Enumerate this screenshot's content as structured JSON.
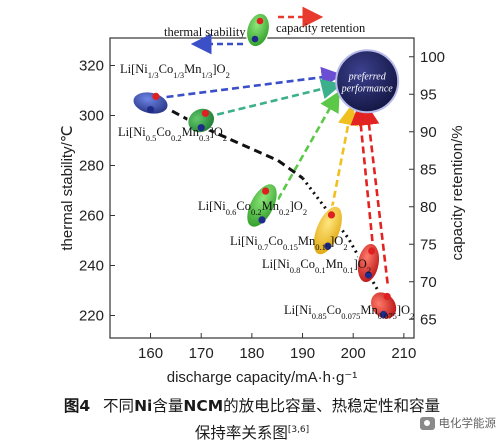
{
  "chart_data": {
    "type": "scatter",
    "xlabel": "discharge capacity/mA·h·g⁻¹",
    "ylabel_left": "thermal stability/℃",
    "ylabel_right": "capacity retention/%",
    "x_ticks": [
      "160",
      "170",
      "180",
      "190",
      "200",
      "210"
    ],
    "y_left_ticks": [
      "220",
      "240",
      "260",
      "280",
      "300",
      "320"
    ],
    "y_right_ticks": [
      "65",
      "70",
      "75",
      "80",
      "85",
      "90",
      "95",
      "100"
    ],
    "xlim": [
      152,
      212
    ],
    "ylim_left": [
      211,
      331
    ],
    "ylim_right": [
      62.5,
      102.5
    ],
    "points": [
      {
        "label": "Li[Ni1/3Co1/3Mn1/3]O2",
        "x": 160,
        "thermal_stability": 305,
        "capacity_retention": 95,
        "color": "#2c3e94"
      },
      {
        "label": "Li[Ni0.5Co0.2Mn0.3]O2",
        "x": 170,
        "thermal_stability": 298,
        "capacity_retention": 93,
        "color": "#2e9c45"
      },
      {
        "label": "Li[Ni0.6Co0.2Mn0.2]O2",
        "x": 182,
        "thermal_stability": 264,
        "capacity_retention": 87,
        "color": "#4cc23a"
      },
      {
        "label": "Li[Ni0.7Co0.15Mn0.15]O2",
        "x": 195,
        "thermal_stability": 254,
        "capacity_retention": 80,
        "color": "#f1c01a"
      },
      {
        "label": "Li[Ni0.8Co0.1Mn0.1]O2",
        "x": 203,
        "thermal_stability": 241,
        "capacity_retention": 75,
        "color": "#e32222"
      },
      {
        "label": "Li[Ni0.85Co0.075Mn0.075]O2",
        "x": 206,
        "thermal_stability": 224,
        "capacity_retention": 68,
        "color": "#d42020"
      }
    ],
    "preferred_point": {
      "label_line1": "preferred",
      "label_line2": "performance",
      "x": 200,
      "capacity_retention": 97
    },
    "legend": {
      "thermal": "thermal stability",
      "retention": "capacity retention"
    }
  },
  "point_labels": [
    {
      "main": "Li[Ni",
      "sub1": "1/3",
      "mid1": "Co",
      "sub2": "1/3",
      "mid2": "Mn",
      "sub3": "1/3",
      "end": "]O",
      "sub4": "2"
    },
    {
      "main": "Li[Ni",
      "sub1": "0.5",
      "mid1": "Co",
      "sub2": "0.2",
      "mid2": "Mn",
      "sub3": "0.3",
      "end": "]O",
      "sub4": "2"
    },
    {
      "main": "Li[Ni",
      "sub1": "0.6",
      "mid1": "Co",
      "sub2": "0.2",
      "mid2": "Mn",
      "sub3": "0.2",
      "end": "]O",
      "sub4": "2"
    },
    {
      "main": "Li[Ni",
      "sub1": "0.7",
      "mid1": "Co",
      "sub2": "0.15",
      "mid2": "Mn",
      "sub3": "0.15",
      "end": "]O",
      "sub4": "2"
    },
    {
      "main": "Li[Ni",
      "sub1": "0.8",
      "mid1": "Co",
      "sub2": "0.1",
      "mid2": "Mn",
      "sub3": "0.1",
      "end": "]O",
      "sub4": "2"
    },
    {
      "main": "Li[Ni",
      "sub1": "0.85",
      "mid1": "Co",
      "sub2": "0.075",
      "mid2": "Mn",
      "sub3": "0.075",
      "end": "]O",
      "sub4": "2"
    }
  ],
  "caption": {
    "fig_label": "图4",
    "line1_pre": "不同",
    "line1_bold1": "Ni",
    "line1_mid": "含量",
    "line1_bold2": "NCM",
    "line1_post": "的放电比容量、热稳定性和容量",
    "line2": "保持率关系图",
    "ref": "[3,6]"
  },
  "watermark": "电化学能源",
  "colors": {
    "blue_arrow": "#3a4fc8",
    "red_arrow": "#e8392d",
    "preferred_fill": "#1c1f5c"
  }
}
